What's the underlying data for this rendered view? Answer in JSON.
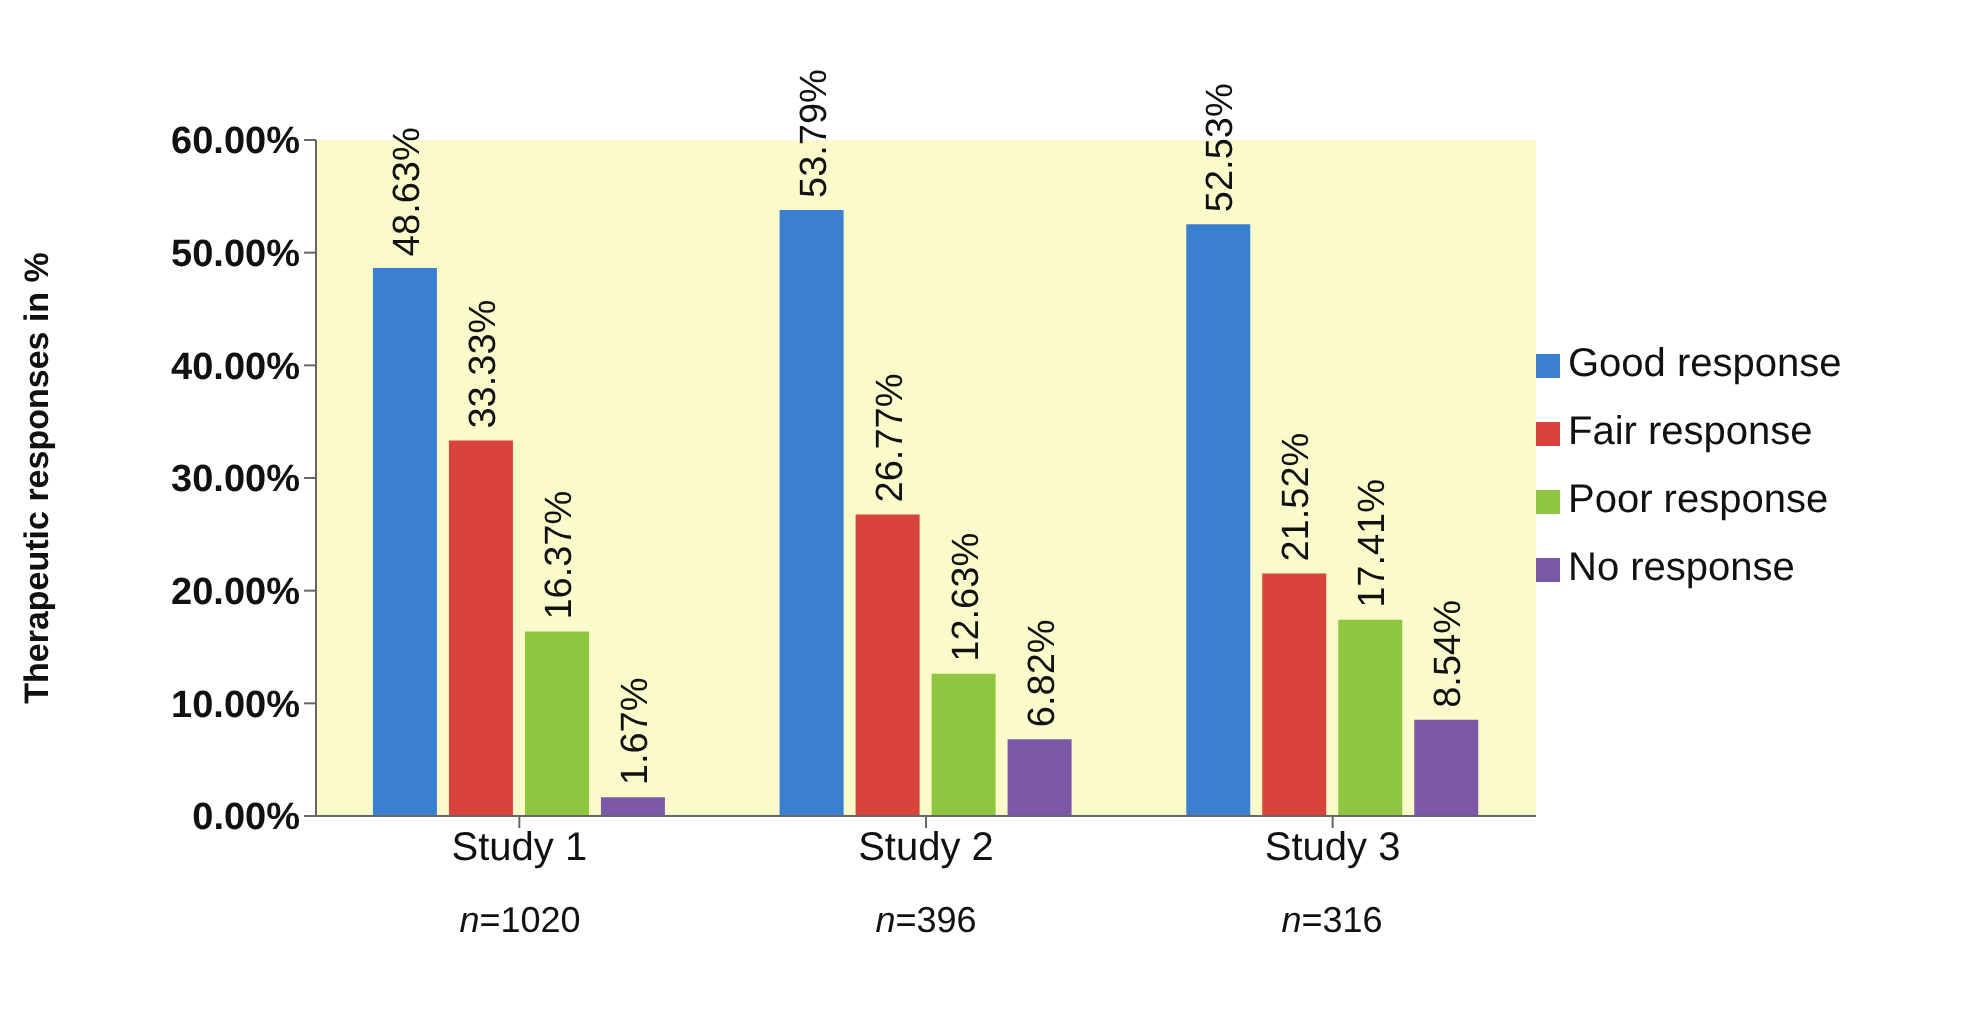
{
  "chart_data": {
    "type": "bar",
    "ylabel": "Therapeutic responses in %",
    "categories": [
      "Study 1",
      "Study 2",
      "Study 3"
    ],
    "series": [
      {
        "name": "Good response",
        "color": "#3b7fd1",
        "values": [
          48.63,
          53.79,
          52.53
        ],
        "value_labels": [
          "48.63%",
          "53.79%",
          "52.53%"
        ]
      },
      {
        "name": "Fair response",
        "color": "#d8433c",
        "values": [
          33.33,
          26.77,
          21.52
        ],
        "value_labels": [
          "33.33%",
          "26.77%",
          "21.52%"
        ]
      },
      {
        "name": "Poor response",
        "color": "#8fc63f",
        "values": [
          16.37,
          12.63,
          17.41
        ],
        "value_labels": [
          "16.37%",
          "12.63%",
          "17.41%"
        ]
      },
      {
        "name": "No response",
        "color": "#7c58a8",
        "values": [
          1.67,
          6.82,
          8.54
        ],
        "value_labels": [
          "1.67%",
          "6.82%",
          "8.54%"
        ]
      }
    ],
    "ylim": [
      0,
      60
    ],
    "yticks": [
      {
        "value": 0,
        "label": "0.00%"
      },
      {
        "value": 10,
        "label": "10.00%"
      },
      {
        "value": 20,
        "label": "20.00%"
      },
      {
        "value": 30,
        "label": "30.00%"
      },
      {
        "value": 40,
        "label": "40.00%"
      },
      {
        "value": 50,
        "label": "50.00%"
      },
      {
        "value": 60,
        "label": "60.00%"
      }
    ],
    "annotations": [
      "n=1020",
      "n=396",
      "n=316"
    ],
    "grid": false,
    "legend": "right"
  }
}
